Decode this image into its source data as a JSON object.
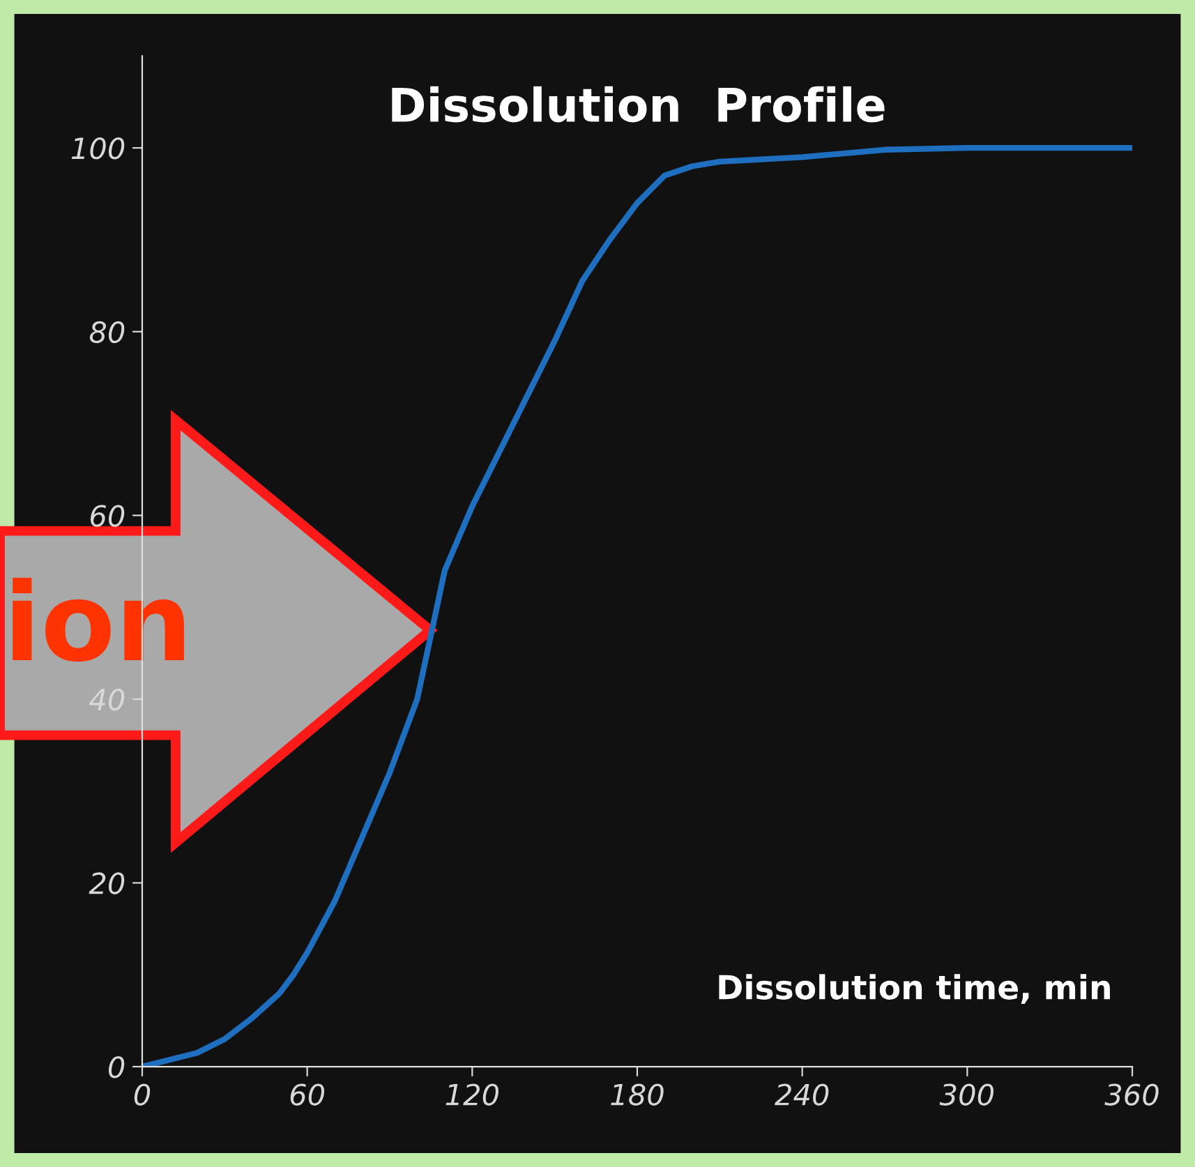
{
  "chart_data": {
    "type": "line",
    "title": "Dissolution  Profile",
    "xlabel": "Dissolution time, min",
    "annotations": [
      "ion"
    ],
    "series": [
      {
        "color": "#1f6fc0",
        "x": [
          0,
          20,
          30,
          40,
          50,
          55,
          60,
          70,
          80,
          90,
          100,
          105,
          110,
          120,
          130,
          140,
          150,
          160,
          170,
          180,
          190,
          200,
          210,
          240,
          270,
          300,
          360
        ],
        "values": [
          0,
          1.5,
          3,
          5.3,
          8,
          10,
          12.4,
          18,
          25,
          32,
          40,
          47,
          54,
          61,
          67,
          73,
          79,
          85.5,
          90,
          94,
          97,
          98,
          98.5,
          99,
          99.8,
          100,
          100
        ]
      }
    ],
    "xlim": [
      0,
      360
    ],
    "xticks": [
      0,
      60,
      120,
      180,
      240,
      300,
      360
    ],
    "ylim": [
      0,
      110
    ],
    "yticks": [
      0,
      20,
      40,
      60,
      80,
      100
    ],
    "grid": false,
    "legend": false,
    "marker": "none",
    "line_style": "solid"
  }
}
